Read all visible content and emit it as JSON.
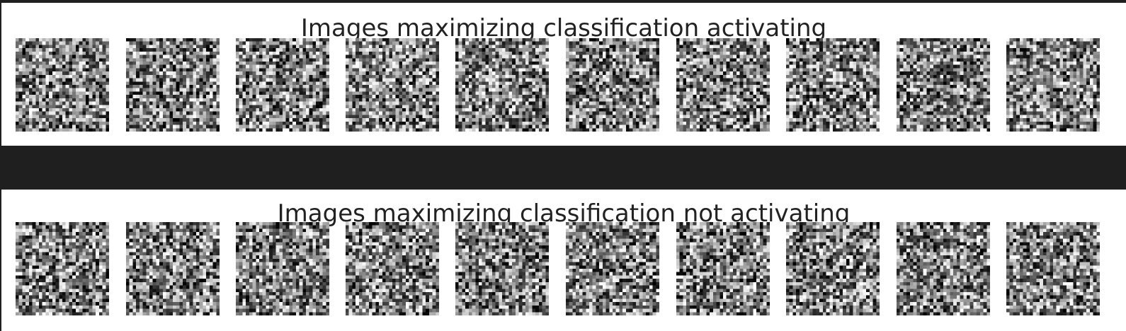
{
  "figures": [
    {
      "id": "activating",
      "title": "Images maximizing classification activating",
      "image_count": 10,
      "image_style": "grayscale random noise"
    },
    {
      "id": "not-activating",
      "title": "Images maximizing classification not activating",
      "image_count": 10,
      "image_style": "grayscale random noise"
    }
  ],
  "colors": {
    "background": "#1f1f1f",
    "panel": "#ffffff",
    "title_text": "#222222"
  }
}
